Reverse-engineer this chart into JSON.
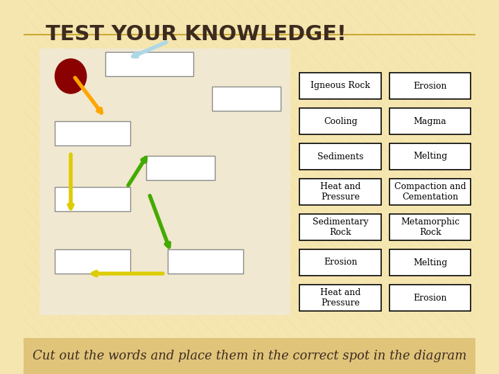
{
  "title": "TEST YOUR KNOWLEDGE!",
  "title_color": "#3d2b1f",
  "bg_color": "#f5e6b0",
  "bg_color2": "#dfc47a",
  "footer_text": "Cut out the words and place them in the correct spot in the diagram",
  "word_boxes_col1": [
    "Igneous Rock",
    "Cooling",
    "Sediments",
    "Heat and\nPressure",
    "Sedimentary\nRock",
    "Erosion",
    "Heat and\nPressure"
  ],
  "word_boxes_col2": [
    "Erosion",
    "Magma",
    "Melting",
    "Compaction and\nCementation",
    "Metamorphic\nRock",
    "Melting",
    "Erosion"
  ],
  "box_bg": "#ffffff",
  "box_edge": "#000000",
  "text_color": "#000000",
  "font_size_title": 22,
  "font_size_box": 9,
  "font_size_footer": 13
}
